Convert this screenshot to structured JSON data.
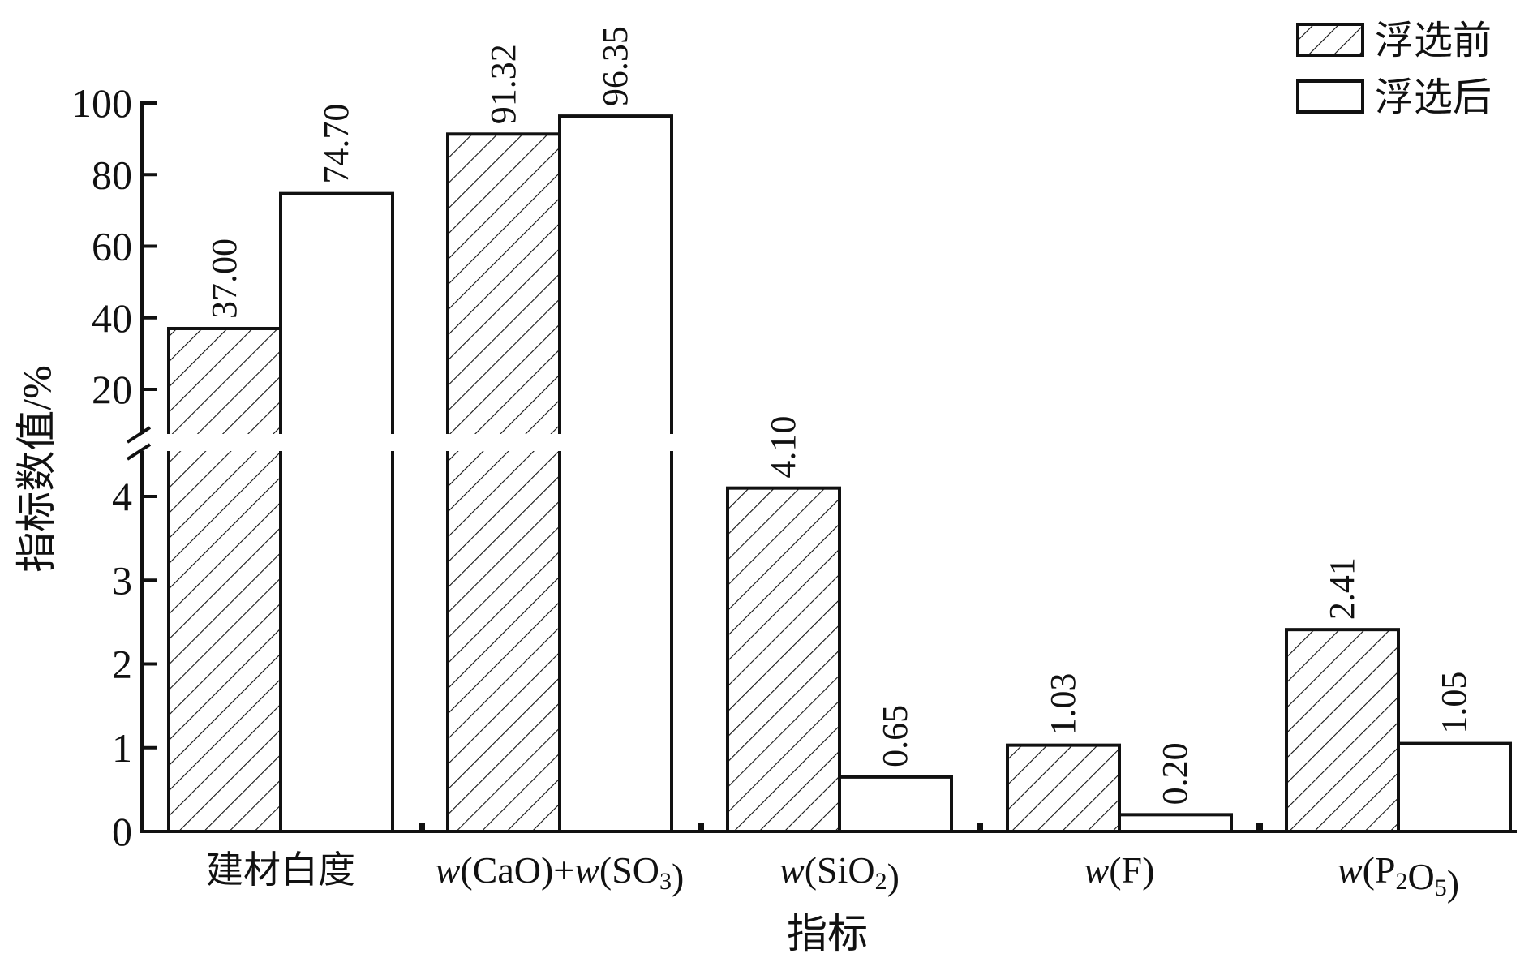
{
  "chart_data": {
    "type": "bar",
    "xlabel": "指标",
    "ylabel": "指标数值/%",
    "categories": [
      {
        "parts": [
          {
            "t": "建材白度"
          }
        ]
      },
      {
        "parts": [
          {
            "t": "w",
            "i": true
          },
          {
            "t": "(CaO)+"
          },
          {
            "t": "w",
            "i": true
          },
          {
            "t": "(SO"
          },
          {
            "t": "3",
            "sub": true
          },
          {
            "t": ")"
          }
        ]
      },
      {
        "parts": [
          {
            "t": "w",
            "i": true
          },
          {
            "t": "(SiO"
          },
          {
            "t": "2",
            "sub": true
          },
          {
            "t": ")"
          }
        ]
      },
      {
        "parts": [
          {
            "t": "w",
            "i": true
          },
          {
            "t": "(F)"
          }
        ]
      },
      {
        "parts": [
          {
            "t": "w",
            "i": true
          },
          {
            "t": "(P"
          },
          {
            "t": "2",
            "sub": true
          },
          {
            "t": "O"
          },
          {
            "t": "5",
            "sub": true
          },
          {
            "t": ")"
          }
        ]
      }
    ],
    "series": [
      {
        "name": "浮选前",
        "pattern": "hatch",
        "values": [
          37.0,
          91.32,
          4.1,
          1.03,
          2.41
        ],
        "labels": [
          "37.00",
          "91.32",
          "4.10",
          "1.03",
          "2.41"
        ]
      },
      {
        "name": "浮选后",
        "pattern": "plain",
        "values": [
          74.7,
          96.35,
          0.65,
          0.2,
          1.05
        ],
        "labels": [
          "74.70",
          "96.35",
          "0.65",
          "0.20",
          "1.05"
        ]
      }
    ],
    "y_axis_break": {
      "lower": {
        "range": [
          0,
          4.5
        ],
        "ticks": [
          0,
          1,
          2,
          3,
          4
        ]
      },
      "upper": {
        "range": [
          15.5,
          100
        ],
        "ticks": [
          20,
          40,
          60,
          80,
          100
        ]
      }
    },
    "grid": false,
    "legend_position": "top-right",
    "colors": {
      "bar_stroke": "#111111",
      "bar_fill": "#ffffff",
      "hatch": "#111111"
    }
  }
}
